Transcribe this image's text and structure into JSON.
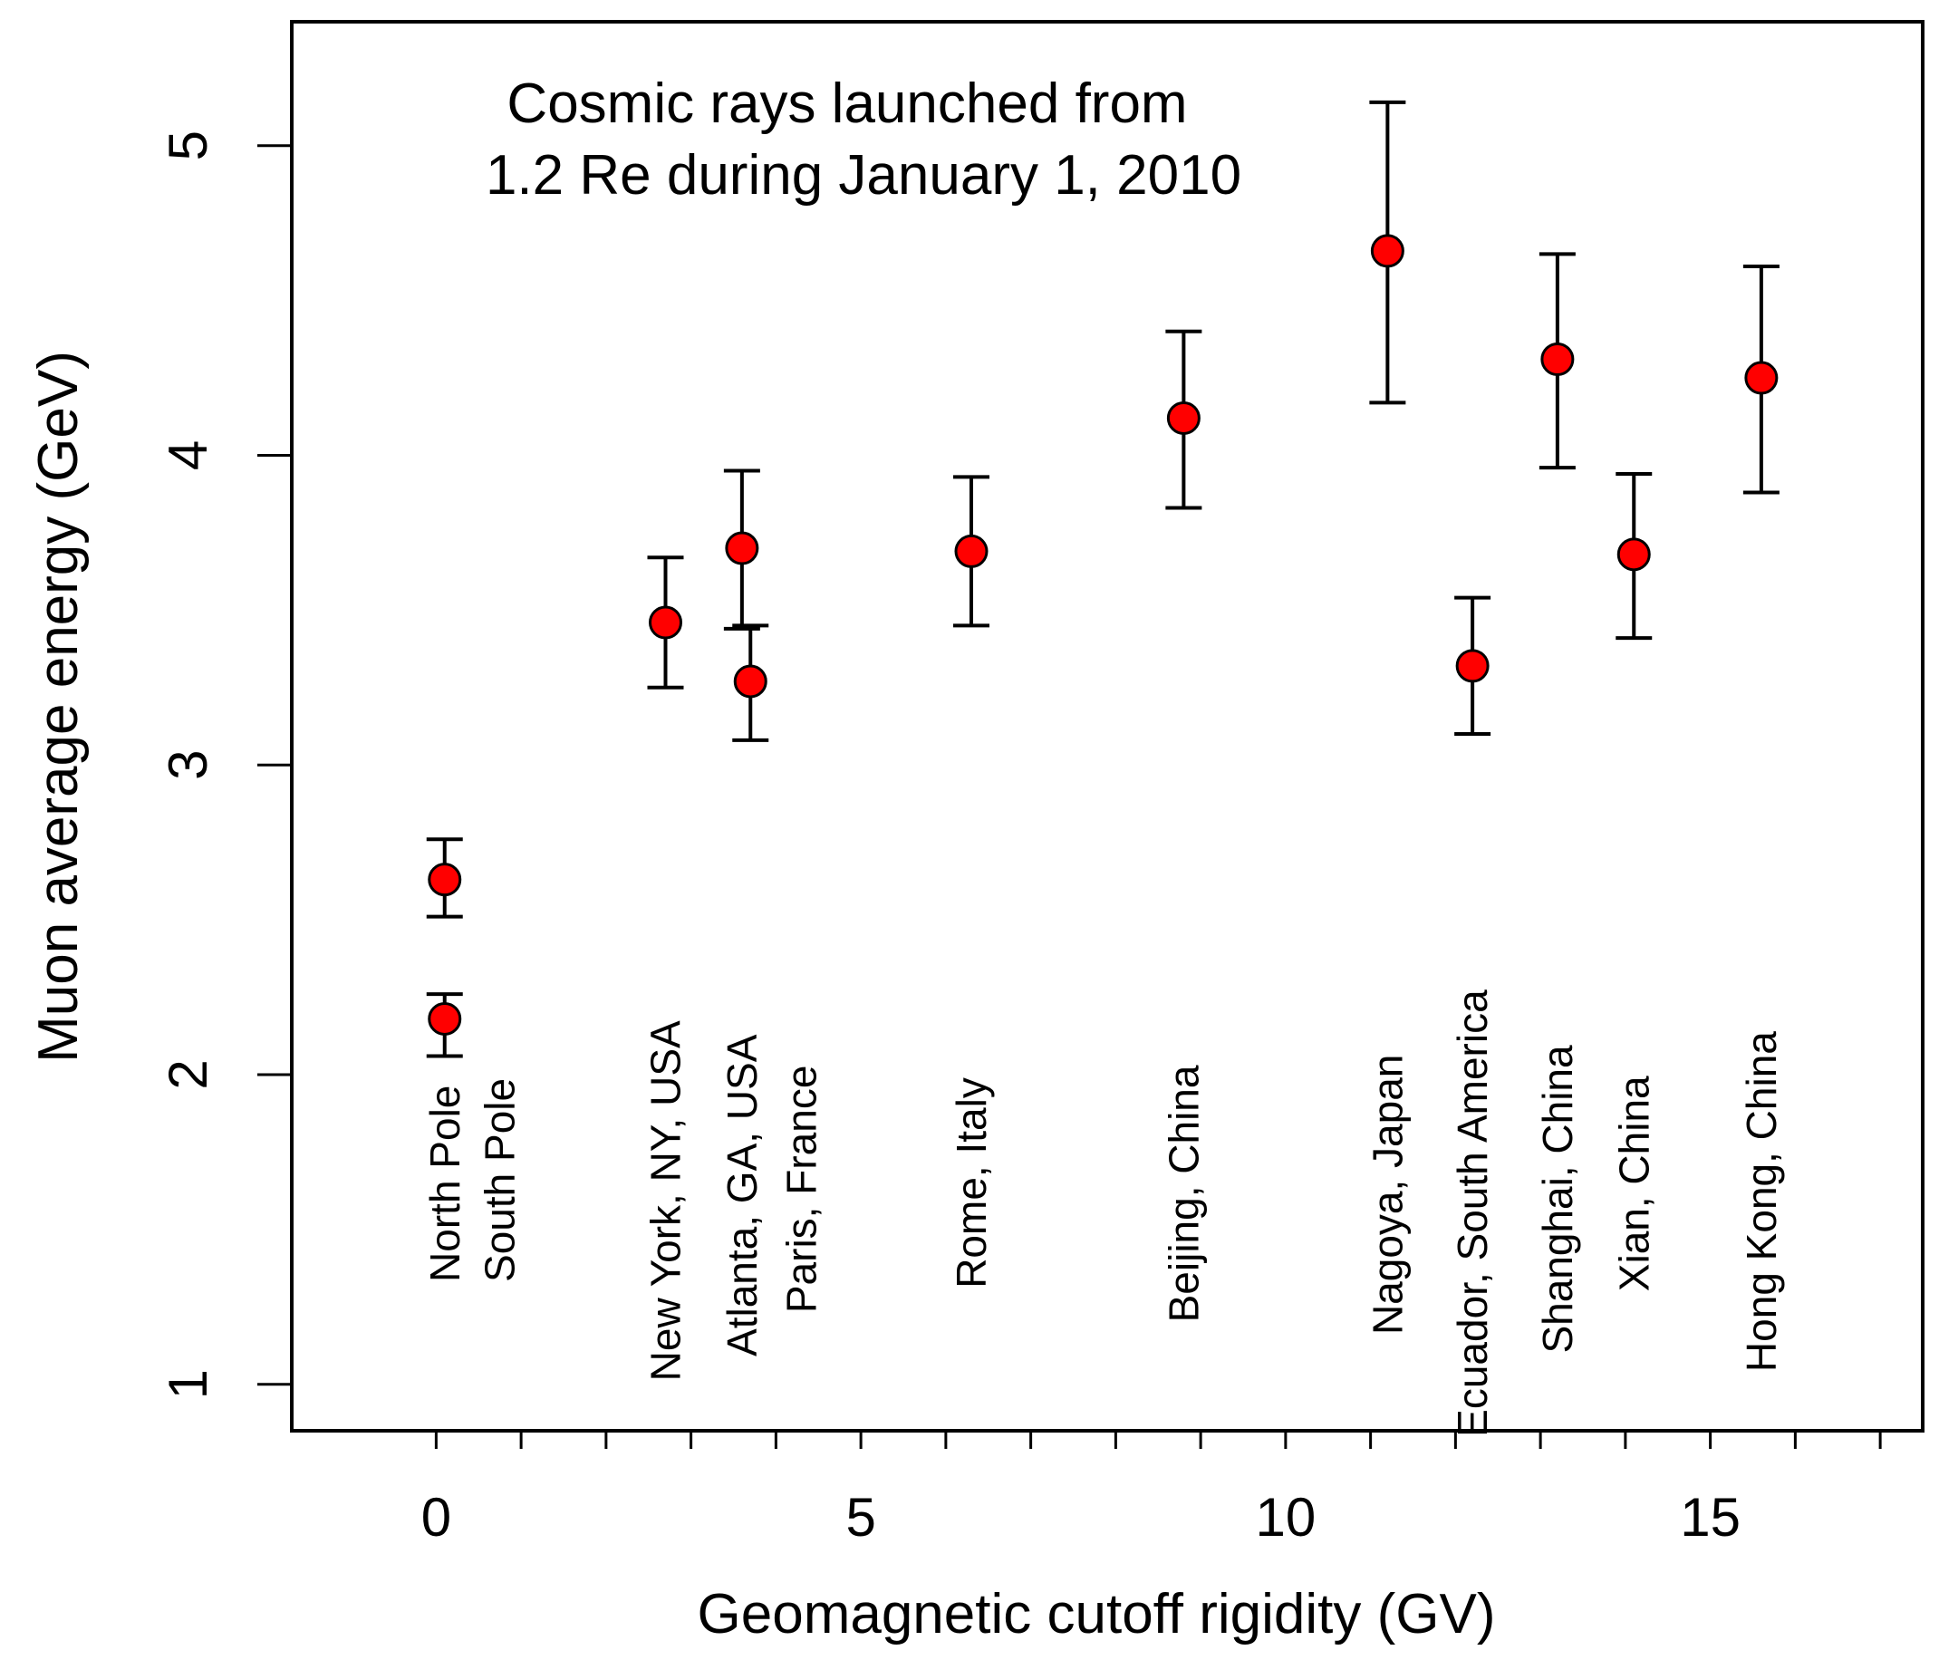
{
  "chart_data": {
    "type": "scatter",
    "title": "",
    "annotation_lines": [
      "Cosmic rays launched from",
      "1.2 Re during January 1, 2010"
    ],
    "xlabel": "Geomagnetic cutoff rigidity (GV)",
    "ylabel": "Muon average energy (GeV)",
    "xlim": [
      -1.7,
      17.5
    ],
    "ylim": [
      0.85,
      5.4
    ],
    "x_major_ticks": [
      0,
      5,
      10,
      15
    ],
    "x_minor_ticks": [
      1,
      2,
      3,
      4,
      6,
      7,
      8,
      9,
      11,
      12,
      13,
      14,
      16,
      17
    ],
    "x_tick_labels": [
      "0",
      "5",
      "10",
      "15"
    ],
    "y_ticks": [
      1,
      2,
      3,
      4,
      5
    ],
    "y_tick_labels": [
      "1",
      "2",
      "3",
      "4",
      "5"
    ],
    "grid": false,
    "marker_color": "#ff0000",
    "points": [
      {
        "x": 0.1,
        "y": 2.63,
        "err_low": 2.51,
        "err_high": 2.76
      },
      {
        "x": 0.1,
        "y": 2.18,
        "err_low": 2.06,
        "err_high": 2.26
      },
      {
        "x": 2.7,
        "y": 3.46,
        "err_low": 3.25,
        "err_high": 3.67
      },
      {
        "x": 3.6,
        "y": 3.7,
        "err_low": 3.44,
        "err_high": 3.95
      },
      {
        "x": 3.7,
        "y": 3.27,
        "err_low": 3.08,
        "err_high": 3.45
      },
      {
        "x": 6.3,
        "y": 3.69,
        "err_low": 3.45,
        "err_high": 3.93
      },
      {
        "x": 8.8,
        "y": 4.12,
        "err_low": 3.83,
        "err_high": 4.4
      },
      {
        "x": 11.2,
        "y": 4.66,
        "err_low": 4.17,
        "err_high": 5.14
      },
      {
        "x": 12.2,
        "y": 3.32,
        "err_low": 3.1,
        "err_high": 3.54
      },
      {
        "x": 13.2,
        "y": 4.31,
        "err_low": 3.96,
        "err_high": 4.65
      },
      {
        "x": 14.1,
        "y": 3.68,
        "err_low": 3.41,
        "err_high": 3.94
      },
      {
        "x": 15.6,
        "y": 4.25,
        "err_low": 3.88,
        "err_high": 4.61
      }
    ],
    "site_labels": [
      {
        "text": "North Pole",
        "x": 0.1,
        "y_start": 1.33
      },
      {
        "text": "South Pole",
        "x": 0.75,
        "y_start": 1.33
      },
      {
        "text": "New York, NY, USA",
        "x": 2.7,
        "y_start": 1.01
      },
      {
        "text": "Atlanta, GA, USA",
        "x": 3.6,
        "y_start": 1.09
      },
      {
        "text": "Paris, France",
        "x": 4.3,
        "y_start": 1.23
      },
      {
        "text": "Rome, Italy",
        "x": 6.3,
        "y_start": 1.31
      },
      {
        "text": "Beijing, China",
        "x": 8.8,
        "y_start": 1.2
      },
      {
        "text": "Nagoya, Japan",
        "x": 11.2,
        "y_start": 1.16
      },
      {
        "text": "Ecuador, South America",
        "x": 12.2,
        "y_start": 0.83
      },
      {
        "text": "Shanghai, China",
        "x": 13.2,
        "y_start": 1.1
      },
      {
        "text": "Xian, China",
        "x": 14.1,
        "y_start": 1.3
      },
      {
        "text": "Hong Kong, China",
        "x": 15.6,
        "y_start": 1.04
      }
    ]
  }
}
